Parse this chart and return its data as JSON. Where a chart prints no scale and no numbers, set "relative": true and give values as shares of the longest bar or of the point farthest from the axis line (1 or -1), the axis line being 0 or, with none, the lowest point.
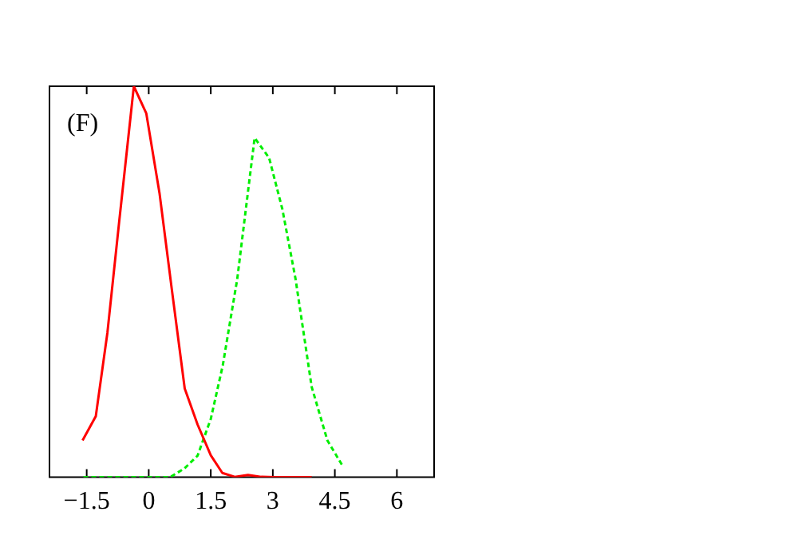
{
  "chart_data": {
    "type": "line",
    "relative": true,
    "annotations": [
      "(F)"
    ],
    "xlim": [
      -2.4,
      6.9
    ],
    "xticks": [
      {
        "value": -1.5,
        "label": "−1.5"
      },
      0,
      1.5,
      3,
      4.5,
      6
    ],
    "grid": false,
    "legend": false,
    "marker": "none",
    "series": [
      {
        "color": "#ff0000",
        "line_style": "solid",
        "x": [
          -1.6,
          -1.28,
          -1.0,
          -0.71,
          -0.36,
          -0.06,
          0.26,
          0.56,
          0.87,
          1.18,
          1.5,
          1.78,
          2.08,
          2.4,
          2.72,
          3.04,
          3.94
        ],
        "values": [
          0.094,
          0.156,
          0.369,
          0.658,
          1,
          0.931,
          0.727,
          0.479,
          0.227,
          0.135,
          0.056,
          0.011,
          0.001,
          0.006,
          0.001,
          0,
          0
        ]
      },
      {
        "color": "#00ee00",
        "line_style": "dashed",
        "x": [
          -1.58,
          -0.5,
          0.51,
          0.86,
          1.18,
          1.5,
          1.79,
          2.14,
          2.56,
          2.91,
          3.23,
          3.55,
          3.94,
          4.32,
          4.67
        ],
        "values": [
          0,
          0,
          0,
          0.022,
          0.055,
          0.149,
          0.286,
          0.507,
          0.868,
          0.817,
          0.686,
          0.507,
          0.231,
          0.094,
          0.032
        ]
      }
    ]
  }
}
